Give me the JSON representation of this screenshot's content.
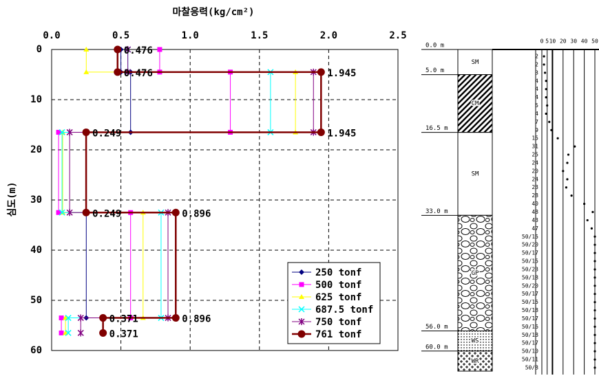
{
  "chart_data": [
    {
      "type": "line",
      "title": "마찰응력(kg/cm²)",
      "y_label": "심도(m)",
      "xlim": [
        0,
        2.5
      ],
      "xticks": [
        {
          "value": 0,
          "label": "0.0"
        },
        {
          "value": 0.5,
          "label": "0.5"
        },
        {
          "value": 1,
          "label": "1.0"
        },
        {
          "value": 1.5,
          "label": "1.5"
        },
        {
          "value": 2,
          "label": "2.0"
        },
        {
          "value": 2.5,
          "label": "2.5"
        }
      ],
      "ylim": [
        0,
        60
      ],
      "yticks": [
        0,
        10,
        20,
        30,
        40,
        50,
        60
      ],
      "y_inverted": true,
      "grid": true,
      "legend": "lower right",
      "series": [
        {
          "name": "250 tonf",
          "color": "#000080",
          "marker": "diamond",
          "x": [
            0.5,
            0.5,
            0.57,
            0.57,
            0.25,
            0.25,
            0.25
          ],
          "values": [
            0,
            4.5,
            4.5,
            16.5,
            16.5,
            32.5,
            53.5
          ]
        },
        {
          "name": "500 tonf",
          "color": "#ff00ff",
          "marker": "square",
          "x": [
            0.78,
            0.78,
            1.29,
            1.29,
            0.05,
            0.05,
            0.57,
            0.57,
            0.07,
            0.07
          ],
          "values": [
            0,
            4.5,
            4.5,
            16.5,
            16.5,
            32.5,
            32.5,
            53.5,
            53.5,
            56.5
          ]
        },
        {
          "name": "625 tonf",
          "color": "#ffff00",
          "marker": "triangle",
          "x": [
            0.25,
            0.25,
            1.76,
            1.76,
            0.08,
            0.08,
            0.66,
            0.66,
            0.1,
            0.1
          ],
          "values": [
            0,
            4.5,
            4.5,
            16.5,
            16.5,
            32.5,
            32.5,
            53.5,
            53.5,
            56.5
          ]
        },
        {
          "name": "687.5 tonf",
          "color": "#00ffff",
          "marker": "x",
          "x": [
            0.55,
            0.55,
            1.58,
            1.58,
            0.075,
            0.075,
            0.79,
            0.79,
            0.12,
            0.12
          ],
          "values": [
            0,
            4.5,
            4.5,
            16.5,
            16.5,
            32.5,
            32.5,
            53.5,
            53.5,
            56.5
          ]
        },
        {
          "name": "750 tonf",
          "color": "#800080",
          "marker": "star",
          "x": [
            0.55,
            0.55,
            1.89,
            1.89,
            0.13,
            0.13,
            0.84,
            0.84,
            0.21,
            0.21
          ],
          "values": [
            0,
            4.5,
            4.5,
            16.5,
            16.5,
            32.5,
            32.5,
            53.5,
            53.5,
            56.5
          ]
        },
        {
          "name": "761 tonf",
          "color": "#800000",
          "marker": "circle",
          "labels": true,
          "x": [
            0.476,
            0.476,
            1.945,
            1.945,
            0.249,
            0.249,
            0.896,
            0.896,
            0.371,
            0.371
          ],
          "values": [
            0,
            4.5,
            4.5,
            16.5,
            16.5,
            32.5,
            32.5,
            53.5,
            53.5,
            56.5
          ]
        }
      ]
    },
    {
      "type": "spt-log",
      "ylim": [
        0,
        64
      ],
      "layers": [
        {
          "top": {
            "value": 0,
            "label": "0.0 m"
          },
          "name": "SM"
        },
        {
          "top": {
            "value": 5,
            "label": "5.0 m"
          },
          "name": "CM"
        },
        {
          "top": {
            "value": 16.5,
            "label": "16.5 m"
          },
          "name": "SM"
        },
        {
          "top": {
            "value": 33,
            "label": "33.0 m"
          },
          "name": "GP"
        },
        {
          "top": {
            "value": 56,
            "label": "56.0 m"
          },
          "name": "WS"
        },
        {
          "top": {
            "value": 60,
            "label": "60.0 m"
          },
          "name": "WR"
        }
      ],
      "xlim": [
        0,
        50
      ],
      "xticks": [
        0,
        5,
        10,
        20,
        30,
        40,
        50
      ],
      "categories": [
        "2",
        "2",
        "3",
        "4",
        "4",
        "4",
        "5",
        "4",
        "7",
        "9",
        "15",
        "31",
        "25",
        "24",
        "20",
        "24",
        "23",
        "28",
        "40",
        "48",
        "43",
        "47",
        "50/15",
        "50/20",
        "50/17",
        "50/15",
        "50/23",
        "50/18",
        "50/20",
        "50/17",
        "50/15",
        "50/18",
        "50/17",
        "50/16",
        "50/18",
        "50/17",
        "50/10",
        "50/11",
        "50/8"
      ],
      "values": [
        2,
        2,
        3,
        4,
        4,
        4,
        5,
        4,
        7,
        9,
        15,
        31,
        25,
        24,
        20,
        24,
        23,
        28,
        40,
        48,
        43,
        47,
        50,
        50,
        50,
        50,
        50,
        50,
        50,
        50,
        50,
        50,
        50,
        50,
        50,
        50,
        50,
        50,
        50
      ]
    }
  ]
}
